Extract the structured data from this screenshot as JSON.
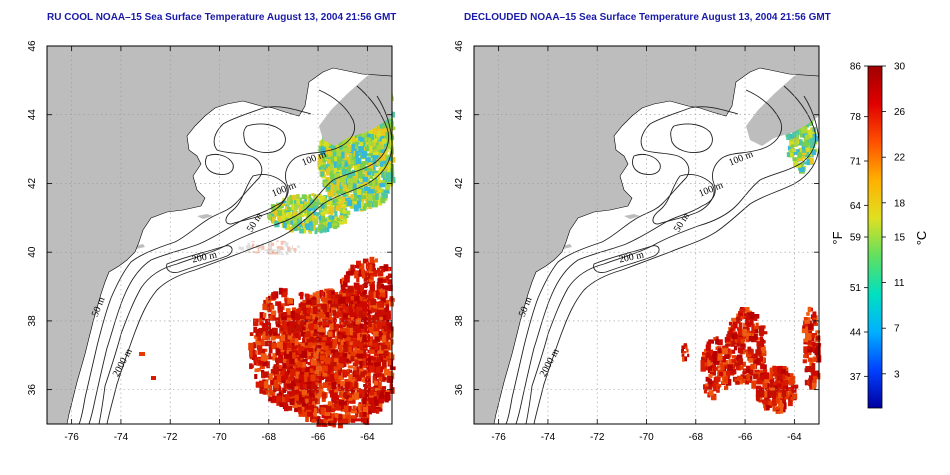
{
  "panels": [
    {
      "id": "left",
      "title": "RU COOL NOAA–15 Sea Surface Temperature August 13, 2004 21:56 GMT",
      "contour_labels": [
        "100 m",
        "100 m",
        "50 m",
        "200 m",
        "50 m",
        "2000 m"
      ]
    },
    {
      "id": "right",
      "title": "DECLOUDED NOAA–15 Sea Surface Temperature August 13, 2004 21:56 GMT",
      "contour_labels": [
        "100 m",
        "100 m",
        "50 m",
        "200 m",
        "50 m",
        "2000 m"
      ]
    }
  ],
  "map_axes": {
    "lon_range": [
      -77,
      -63
    ],
    "lat_range": [
      35,
      46
    ],
    "lon_ticks": [
      "-76",
      "-74",
      "-72",
      "-70",
      "-68",
      "-66",
      "-64"
    ],
    "lat_ticks": [
      "36",
      "38",
      "40",
      "42",
      "44",
      "46"
    ],
    "grid": "dotted"
  },
  "colorbar": {
    "unit_left": "°F",
    "unit_right": "°C",
    "fahrenheit_labels": [
      "86",
      "78",
      "71",
      "64",
      "59",
      "51",
      "44",
      "37"
    ],
    "celsius_labels": [
      "30",
      "26",
      "22",
      "18",
      "15",
      "11",
      "7",
      "3"
    ],
    "celsius_range": [
      0,
      30
    ],
    "colors": [
      "#0000a0",
      "#0040ff",
      "#00b0ff",
      "#00e0c0",
      "#60e060",
      "#e0e020",
      "#ffb000",
      "#ff5000",
      "#e00000",
      "#a00000"
    ]
  },
  "colors": {
    "land": "#bdbdbd",
    "water": "#ffffff",
    "title": "#1a1aa8",
    "warm_sst": "#d81a00",
    "cool_sst": "#7ccf4a"
  }
}
